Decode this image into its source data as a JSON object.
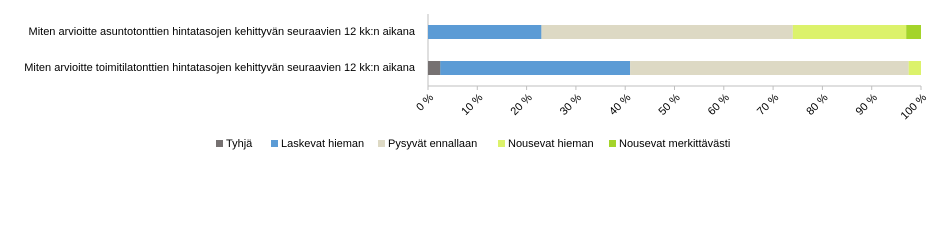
{
  "chart_data": {
    "type": "stacked-bar-horizontal",
    "categories": [
      "Miten arvioitte asuntotonttien hintatasojen kehittyvän seuraavien 12 kk:n aikana",
      "Miten arvioitte toimitilatonttien hintatasojen kehittyvän seuraavien 12 kk:n aikana"
    ],
    "series": [
      {
        "name": "Tyhjä",
        "color": "#767171",
        "values": [
          0,
          2.5
        ]
      },
      {
        "name": "Laskevat hieman",
        "color": "#5b9bd5",
        "values": [
          23,
          38.5
        ]
      },
      {
        "name": "Pysyvät ennallaan",
        "color": "#ddd9c4",
        "values": [
          51,
          56.5
        ]
      },
      {
        "name": "Nousevat hieman",
        "color": "#dcf26b",
        "values": [
          23,
          2.5
        ]
      },
      {
        "name": "Nousevat merkittävästi",
        "color": "#a4d42a",
        "values": [
          3,
          0
        ]
      }
    ],
    "xlim": [
      0,
      100
    ],
    "xticks": [
      {
        "value": 0,
        "label": "0 %"
      },
      {
        "value": 10,
        "label": "10 %"
      },
      {
        "value": 20,
        "label": "20 %"
      },
      {
        "value": 30,
        "label": "30 %"
      },
      {
        "value": 40,
        "label": "40 %"
      },
      {
        "value": 50,
        "label": "50 %"
      },
      {
        "value": 60,
        "label": "60 %"
      },
      {
        "value": 70,
        "label": "70 %"
      },
      {
        "value": 80,
        "label": "80 %"
      },
      {
        "value": 90,
        "label": "90 %"
      },
      {
        "value": 100,
        "label": "100 %"
      }
    ],
    "legend": "bottom"
  }
}
